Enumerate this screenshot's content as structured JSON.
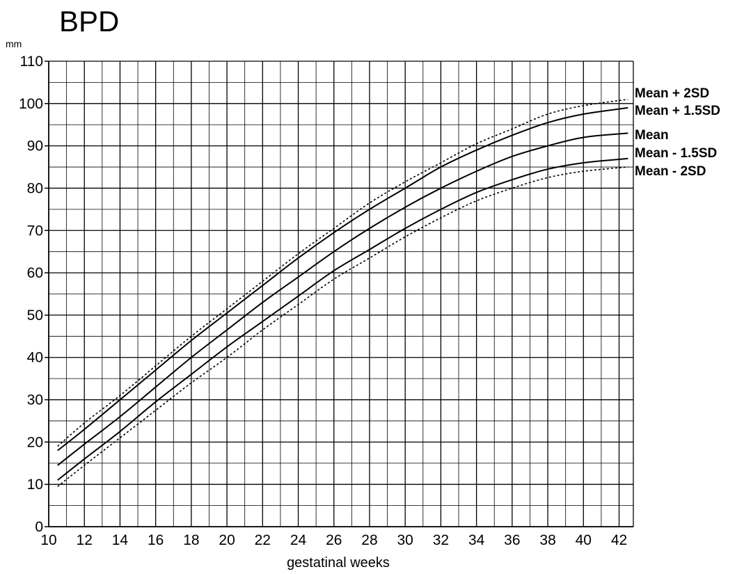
{
  "chart_data": {
    "type": "line",
    "title": "BPD",
    "ylabel": "mm",
    "xlabel": "gestatinal weeks",
    "xlim": [
      10,
      42.8
    ],
    "ylim": [
      0,
      110
    ],
    "xticks": [
      10,
      12,
      14,
      16,
      18,
      20,
      22,
      24,
      26,
      28,
      30,
      32,
      34,
      36,
      38,
      40,
      42
    ],
    "yticks": [
      0,
      10,
      20,
      30,
      40,
      50,
      60,
      70,
      80,
      90,
      100,
      110
    ],
    "grid": true,
    "legend": "right-side line labels",
    "series": [
      {
        "name": "Mean + 2SD",
        "style": "dotted",
        "x": [
          10.5,
          12,
          14,
          16,
          18,
          20,
          22,
          24,
          26,
          28,
          30,
          32,
          34,
          36,
          38,
          40,
          42.5
        ],
        "y": [
          19,
          24.5,
          31,
          38,
          45,
          51.5,
          58,
          64.5,
          70.5,
          76.5,
          81.5,
          86,
          90.5,
          94,
          97.5,
          99.5,
          101
        ]
      },
      {
        "name": "Mean + 1.5SD",
        "style": "solid",
        "x": [
          10.5,
          12,
          14,
          16,
          18,
          20,
          22,
          24,
          26,
          28,
          30,
          32,
          34,
          36,
          38,
          40,
          42.5
        ],
        "y": [
          18,
          23,
          30,
          37,
          44,
          50.5,
          57,
          63.5,
          69.5,
          75,
          80,
          85,
          89,
          92.5,
          95.5,
          97.5,
          99
        ]
      },
      {
        "name": "Mean",
        "style": "solid",
        "x": [
          10.5,
          12,
          14,
          16,
          18,
          20,
          22,
          24,
          26,
          28,
          30,
          32,
          34,
          36,
          38,
          40,
          42.5
        ],
        "y": [
          14.5,
          19.5,
          26,
          33,
          40,
          46.5,
          53,
          59,
          65,
          70.5,
          75.5,
          80,
          84,
          87.5,
          90,
          92,
          93
        ]
      },
      {
        "name": "Mean - 1.5SD",
        "style": "solid",
        "x": [
          10.5,
          12,
          14,
          16,
          18,
          20,
          22,
          24,
          26,
          28,
          30,
          32,
          34,
          36,
          38,
          40,
          42.5
        ],
        "y": [
          11,
          16,
          22.5,
          29.5,
          36,
          42.5,
          48.5,
          54.5,
          60.5,
          65.5,
          70.5,
          75,
          79,
          82,
          84.5,
          86,
          87
        ]
      },
      {
        "name": "Mean - 2SD",
        "style": "dotted",
        "x": [
          10.5,
          12,
          14,
          16,
          18,
          20,
          22,
          24,
          26,
          28,
          30,
          32,
          34,
          36,
          38,
          40,
          42.5
        ],
        "y": [
          9.5,
          14.5,
          21,
          27.5,
          34,
          40,
          46.5,
          52.5,
          58.5,
          63.5,
          68.5,
          73,
          77,
          80,
          82.5,
          84,
          85
        ]
      }
    ]
  }
}
